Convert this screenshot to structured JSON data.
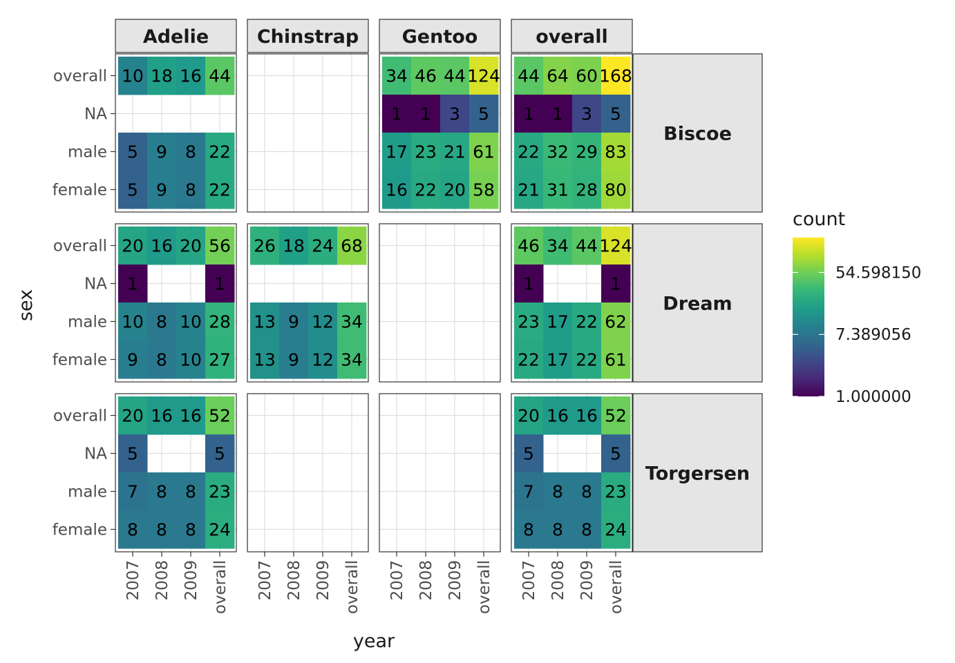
{
  "chart_data": {
    "type": "heatmap",
    "xlabel": "year",
    "ylabel": "sex",
    "x_categories": [
      "2007",
      "2008",
      "2009",
      "overall"
    ],
    "y_categories": [
      "female",
      "male",
      "NA",
      "overall"
    ],
    "col_facets": [
      "Adelie",
      "Chinstrap",
      "Gentoo",
      "overall"
    ],
    "row_facets": [
      "Biscoe",
      "Dream",
      "Torgersen"
    ],
    "color_scale": {
      "type": "log",
      "palette": "viridis",
      "min": 1,
      "max": 168,
      "breaks": [
        1.0,
        7.389056,
        54.59815
      ],
      "break_labels": [
        "1.000000",
        "7.389056",
        "54.598150"
      ]
    },
    "legend": {
      "title": "count",
      "position": "right"
    },
    "panels": [
      {
        "row": "Biscoe",
        "col": "Adelie",
        "values": {
          "overall": [
            10,
            18,
            16,
            44
          ],
          "NA": [
            null,
            null,
            null,
            null
          ],
          "male": [
            5,
            9,
            8,
            22
          ],
          "female": [
            5,
            9,
            8,
            22
          ]
        }
      },
      {
        "row": "Biscoe",
        "col": "Chinstrap",
        "values": {
          "overall": [
            null,
            null,
            null,
            null
          ],
          "NA": [
            null,
            null,
            null,
            null
          ],
          "male": [
            null,
            null,
            null,
            null
          ],
          "female": [
            null,
            null,
            null,
            null
          ]
        }
      },
      {
        "row": "Biscoe",
        "col": "Gentoo",
        "values": {
          "overall": [
            34,
            46,
            44,
            124
          ],
          "NA": [
            1,
            1,
            3,
            5
          ],
          "male": [
            17,
            23,
            21,
            61
          ],
          "female": [
            16,
            22,
            20,
            58
          ]
        }
      },
      {
        "row": "Biscoe",
        "col": "overall",
        "values": {
          "overall": [
            44,
            64,
            60,
            168
          ],
          "NA": [
            1,
            1,
            3,
            5
          ],
          "male": [
            22,
            32,
            29,
            83
          ],
          "female": [
            21,
            31,
            28,
            80
          ]
        }
      },
      {
        "row": "Dream",
        "col": "Adelie",
        "values": {
          "overall": [
            20,
            16,
            20,
            56
          ],
          "NA": [
            1,
            null,
            null,
            1
          ],
          "male": [
            10,
            8,
            10,
            28
          ],
          "female": [
            9,
            8,
            10,
            27
          ]
        }
      },
      {
        "row": "Dream",
        "col": "Chinstrap",
        "values": {
          "overall": [
            26,
            18,
            24,
            68
          ],
          "NA": [
            null,
            null,
            null,
            null
          ],
          "male": [
            13,
            9,
            12,
            34
          ],
          "female": [
            13,
            9,
            12,
            34
          ]
        }
      },
      {
        "row": "Dream",
        "col": "Gentoo",
        "values": {
          "overall": [
            null,
            null,
            null,
            null
          ],
          "NA": [
            null,
            null,
            null,
            null
          ],
          "male": [
            null,
            null,
            null,
            null
          ],
          "female": [
            null,
            null,
            null,
            null
          ]
        }
      },
      {
        "row": "Dream",
        "col": "overall",
        "values": {
          "overall": [
            46,
            34,
            44,
            124
          ],
          "NA": [
            1,
            null,
            null,
            1
          ],
          "male": [
            23,
            17,
            22,
            62
          ],
          "female": [
            22,
            17,
            22,
            61
          ]
        }
      },
      {
        "row": "Torgersen",
        "col": "Adelie",
        "values": {
          "overall": [
            20,
            16,
            16,
            52
          ],
          "NA": [
            5,
            null,
            null,
            5
          ],
          "male": [
            7,
            8,
            8,
            23
          ],
          "female": [
            8,
            8,
            8,
            24
          ]
        }
      },
      {
        "row": "Torgersen",
        "col": "Chinstrap",
        "values": {
          "overall": [
            null,
            null,
            null,
            null
          ],
          "NA": [
            null,
            null,
            null,
            null
          ],
          "male": [
            null,
            null,
            null,
            null
          ],
          "female": [
            null,
            null,
            null,
            null
          ]
        }
      },
      {
        "row": "Torgersen",
        "col": "Gentoo",
        "values": {
          "overall": [
            null,
            null,
            null,
            null
          ],
          "NA": [
            null,
            null,
            null,
            null
          ],
          "male": [
            null,
            null,
            null,
            null
          ],
          "female": [
            null,
            null,
            null,
            null
          ]
        }
      },
      {
        "row": "Torgersen",
        "col": "overall",
        "values": {
          "overall": [
            20,
            16,
            16,
            52
          ],
          "NA": [
            5,
            null,
            null,
            5
          ],
          "male": [
            7,
            8,
            8,
            23
          ],
          "female": [
            8,
            8,
            8,
            24
          ]
        }
      }
    ]
  }
}
